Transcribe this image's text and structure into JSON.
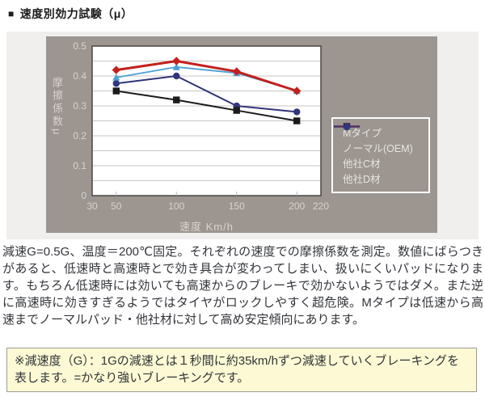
{
  "page": {
    "bullet": "■",
    "title": "速度別効力試験（μ）"
  },
  "chart_data": {
    "type": "line",
    "title": "",
    "xlabel": "速度 Km/h",
    "ylabel": "摩擦係数μ",
    "x": [
      50,
      100,
      150,
      200
    ],
    "xlim": [
      30,
      220
    ],
    "ylim": [
      0,
      0.5
    ],
    "x_ticks": [
      30,
      50,
      100,
      150,
      200,
      220
    ],
    "y_ticks": [
      0,
      0.1,
      0.2,
      0.3,
      0.4,
      0.5
    ],
    "grid": "horizontal lines every 0.05, plot background white, chart panel gray",
    "legend_position": "right, white-bordered box on gray panel",
    "panel_bg": "#9c9590",
    "plot_bg": "#ffffff",
    "gridline_color": "#c9c6c3",
    "tick_label_color": "#d8d3ce",
    "series": [
      {
        "name": "Mタイプ",
        "color": "#c4201d",
        "marker": "diamond",
        "line_width": 3,
        "values": [
          0.42,
          0.45,
          0.415,
          0.35
        ]
      },
      {
        "name": "ノーマル(OEM)",
        "color": "#1c1c1c",
        "marker": "square",
        "line_width": 2,
        "values": [
          0.35,
          0.32,
          0.285,
          0.25
        ]
      },
      {
        "name": "他社C材",
        "color": "#4da0d2",
        "marker": "triangle",
        "line_width": 1.8,
        "values": [
          0.395,
          0.43,
          0.41,
          0.35
        ]
      },
      {
        "name": "他社D材",
        "color": "#32357b",
        "marker": "circle",
        "line_width": 2,
        "values": [
          0.375,
          0.4,
          0.3,
          0.28
        ]
      }
    ]
  },
  "description": "減速G=0.5G、温度＝200℃固定。それぞれの速度での摩擦係数を測定。数値にばらつきがあると、低速時と高速時とで効き具合が変わってしまい、扱いにくいパッドになります。もちろん低速時には効いても高速からのブレーキで効かないようではダメ。また逆に高速時に効きすぎるようではタイヤがロックしやすく超危険。Mタイプは低速から高速までノーマルパッド・他社材に対して高め安定傾向にあります。",
  "note": {
    "text": "※減速度（G）：1Gの減速とは１秒間に約35km/hずつ減速していくブレーキングを表します。=かなり強いブレーキングです。",
    "bg": "#fcf9d4"
  }
}
